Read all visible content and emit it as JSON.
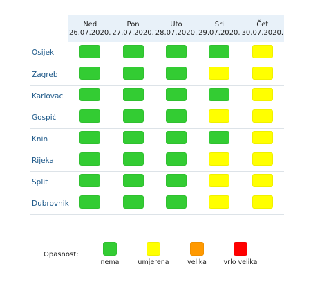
{
  "colors": {
    "nema": "#33cc33",
    "umjerena": "#ffff00",
    "velika": "#ff9900",
    "vrlo_velika": "#ff0000"
  },
  "days": [
    {
      "name": "Ned",
      "date": "26.07.2020."
    },
    {
      "name": "Pon",
      "date": "27.07.2020."
    },
    {
      "name": "Uto",
      "date": "28.07.2020."
    },
    {
      "name": "Sri",
      "date": "29.07.2020."
    },
    {
      "name": "Čet",
      "date": "30.07.2020."
    }
  ],
  "cities": [
    {
      "name": "Osijek",
      "levels": [
        "nema",
        "nema",
        "nema",
        "nema",
        "umjerena"
      ]
    },
    {
      "name": "Zagreb",
      "levels": [
        "nema",
        "nema",
        "nema",
        "umjerena",
        "umjerena"
      ]
    },
    {
      "name": "Karlovac",
      "levels": [
        "nema",
        "nema",
        "nema",
        "nema",
        "umjerena"
      ]
    },
    {
      "name": "Gospić",
      "levels": [
        "nema",
        "nema",
        "nema",
        "umjerena",
        "umjerena"
      ]
    },
    {
      "name": "Knin",
      "levels": [
        "nema",
        "nema",
        "nema",
        "nema",
        "umjerena"
      ]
    },
    {
      "name": "Rijeka",
      "levels": [
        "nema",
        "nema",
        "nema",
        "umjerena",
        "umjerena"
      ]
    },
    {
      "name": "Split",
      "levels": [
        "nema",
        "nema",
        "nema",
        "umjerena",
        "umjerena"
      ]
    },
    {
      "name": "Dubrovnik",
      "levels": [
        "nema",
        "nema",
        "nema",
        "umjerena",
        "umjerena"
      ]
    }
  ],
  "legend": {
    "title": "Opasnost:",
    "items": [
      {
        "key": "nema",
        "label": "nema"
      },
      {
        "key": "umjerena",
        "label": "umjerena"
      },
      {
        "key": "velika",
        "label": "velika"
      },
      {
        "key": "vrlo_velika",
        "label": "vrlo velika"
      }
    ]
  }
}
